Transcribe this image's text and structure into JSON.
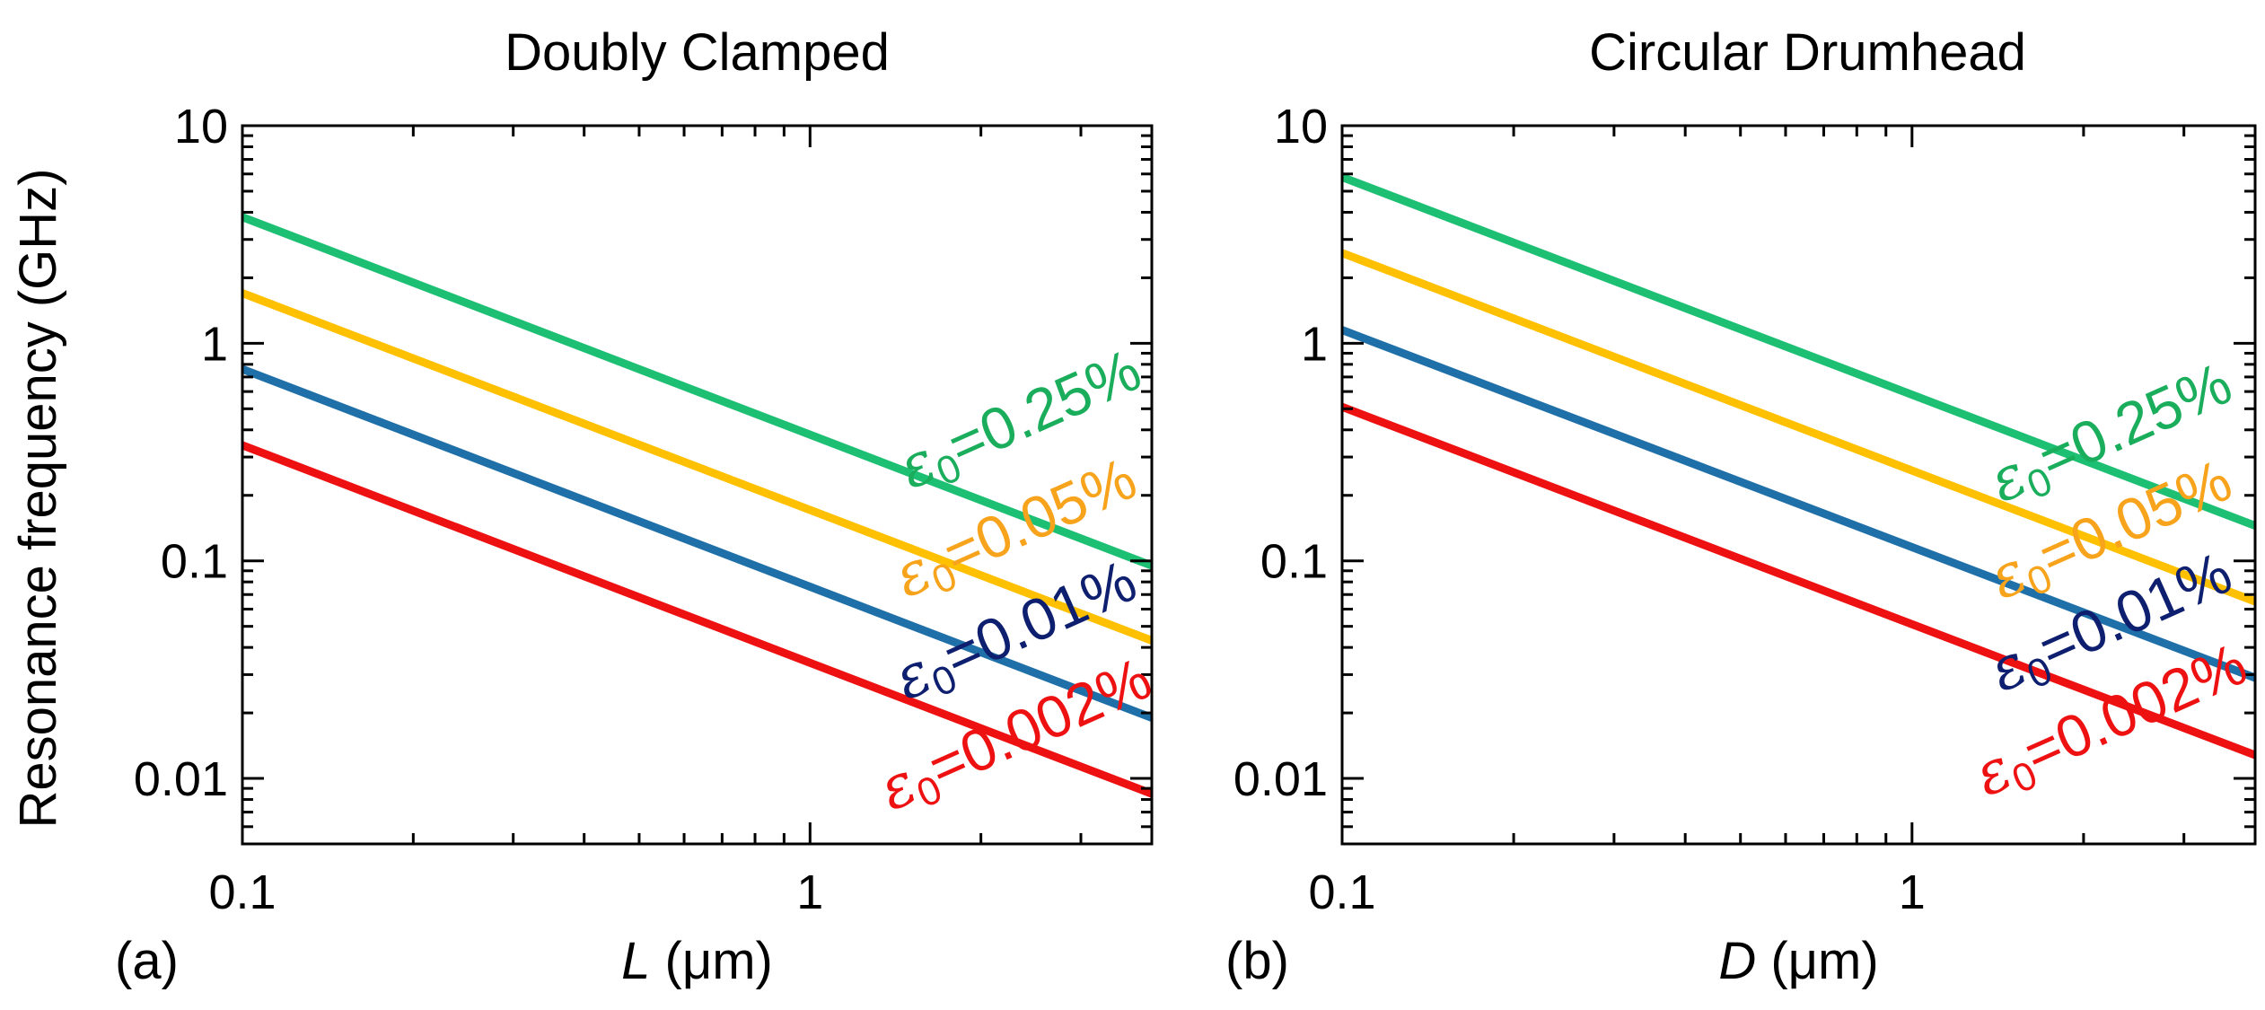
{
  "figure": {
    "ylabel": "Resonance frequency (GHz)"
  },
  "chart_data": [
    {
      "type": "line",
      "panel_tag": "(a)",
      "title": "Doubly Clamped",
      "xlabel_var": "L",
      "xlabel_unit": " (μm)",
      "ylabel": "Resonance frequency (GHz)",
      "x_scale": "log",
      "y_scale": "log",
      "xlim": [
        0.1,
        4.0
      ],
      "ylim": [
        0.005,
        10
      ],
      "x_ticks": [
        {
          "value": 0.1,
          "label": "0.1"
        },
        {
          "value": 1,
          "label": "1"
        }
      ],
      "y_ticks": [
        {
          "value": 0.01,
          "label": "0.01"
        },
        {
          "value": 0.1,
          "label": "0.1"
        },
        {
          "value": 1,
          "label": "1"
        },
        {
          "value": 10,
          "label": "10"
        }
      ],
      "series": [
        {
          "name": "ε0=0.25%",
          "symbol": "ε",
          "subscript": "0",
          "value_text": "=0.25%",
          "color": "#1dbf73",
          "label_color": "#1aae5c",
          "x": [
            0.1,
            4.0
          ],
          "y": [
            3.8,
            0.095
          ]
        },
        {
          "name": "ε0=0.05%",
          "symbol": "ε",
          "subscript": "0",
          "value_text": "=0.05%",
          "color": "#ffc000",
          "label_color": "#f7a31c",
          "x": [
            0.1,
            4.0
          ],
          "y": [
            1.7,
            0.043
          ]
        },
        {
          "name": "ε0=0.01%",
          "symbol": "ε",
          "subscript": "0",
          "value_text": "=0.01%",
          "color": "#1f6fa8",
          "label_color": "#0d1f6e",
          "x": [
            0.1,
            4.0
          ],
          "y": [
            0.76,
            0.019
          ]
        },
        {
          "name": "ε0=0.002%",
          "symbol": "ε",
          "subscript": "0",
          "value_text": "=0.002%",
          "color": "#ee1111",
          "label_color": "#ee1111",
          "x": [
            0.1,
            4.0
          ],
          "y": [
            0.34,
            0.0085
          ]
        }
      ]
    },
    {
      "type": "line",
      "panel_tag": "(b)",
      "title": "Circular Drumhead",
      "xlabel_var": "D",
      "xlabel_unit": " (μm)",
      "ylabel": "Resonance frequency (GHz)",
      "x_scale": "log",
      "y_scale": "log",
      "xlim": [
        0.1,
        4.0
      ],
      "ylim": [
        0.005,
        10
      ],
      "x_ticks": [
        {
          "value": 0.1,
          "label": "0.1"
        },
        {
          "value": 1,
          "label": "1"
        }
      ],
      "y_ticks": [
        {
          "value": 0.01,
          "label": "0.01"
        },
        {
          "value": 0.1,
          "label": "0.1"
        },
        {
          "value": 1,
          "label": "1"
        },
        {
          "value": 10,
          "label": "10"
        }
      ],
      "series": [
        {
          "name": "ε0=0.25%",
          "symbol": "ε",
          "subscript": "0",
          "value_text": "=0.25%",
          "color": "#1dbf73",
          "label_color": "#1aae5c",
          "x": [
            0.1,
            4.0
          ],
          "y": [
            5.8,
            0.145
          ]
        },
        {
          "name": "ε0=0.05%",
          "symbol": "ε",
          "subscript": "0",
          "value_text": "=0.05%",
          "color": "#ffc000",
          "label_color": "#f7a31c",
          "x": [
            0.1,
            4.0
          ],
          "y": [
            2.6,
            0.065
          ]
        },
        {
          "name": "ε0=0.01%",
          "symbol": "ε",
          "subscript": "0",
          "value_text": "=0.01%",
          "color": "#1f6fa8",
          "label_color": "#0d1f6e",
          "x": [
            0.1,
            4.0
          ],
          "y": [
            1.15,
            0.029
          ]
        },
        {
          "name": "ε0=0.002%",
          "symbol": "ε",
          "subscript": "0",
          "value_text": "=0.002%",
          "color": "#ee1111",
          "label_color": "#ee1111",
          "x": [
            0.1,
            4.0
          ],
          "y": [
            0.51,
            0.0128
          ]
        }
      ]
    }
  ]
}
